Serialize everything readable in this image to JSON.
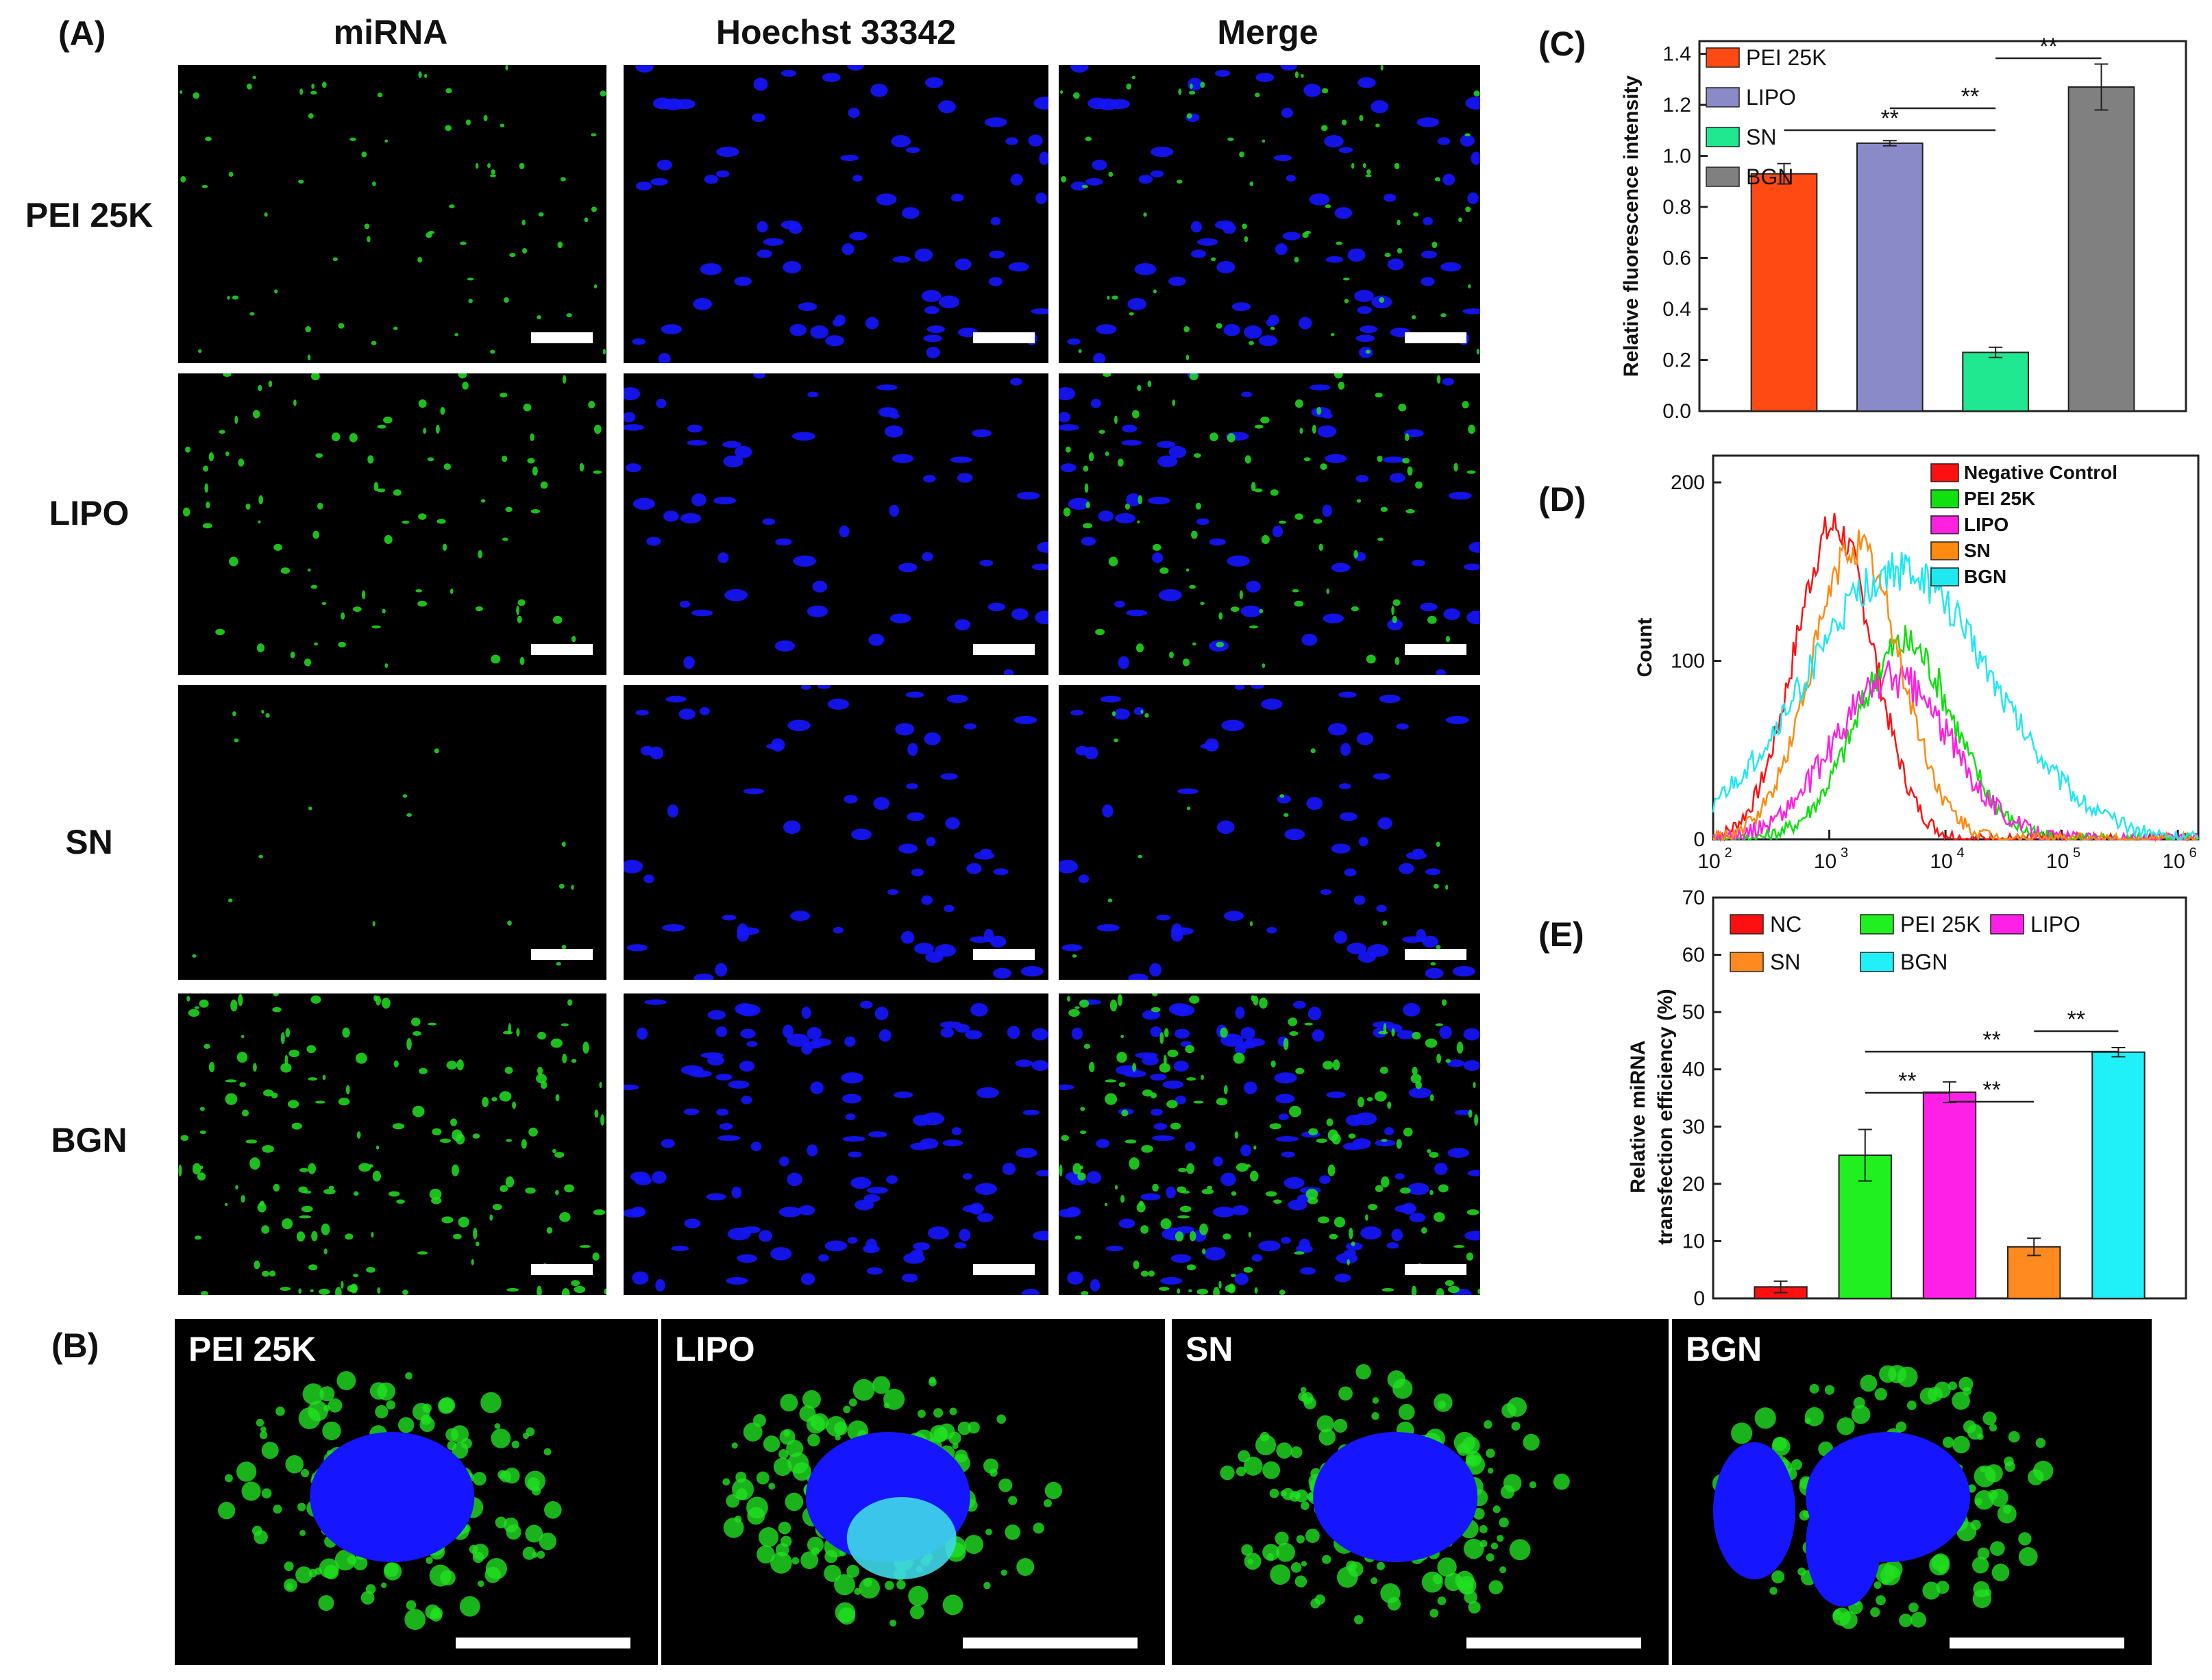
{
  "panelA": {
    "letter": "(A)",
    "columns": [
      "miRNA",
      "Hoechst 33342",
      "Merge"
    ],
    "rows": [
      "PEI 25K",
      "LIPO",
      "SN",
      "BGN"
    ]
  },
  "panelB": {
    "letter": "(B)",
    "labels": [
      "PEI 25K",
      "LIPO",
      "SN",
      "BGN"
    ]
  },
  "panelC": {
    "letter": "(C)"
  },
  "panelD": {
    "letter": "(D)"
  },
  "panelE": {
    "letter": "(E)"
  },
  "colors": {
    "miRNA": "#22e022",
    "nucleus": "#1515ff",
    "merge_overlap": "#3fd8e8"
  },
  "chart_data": [
    {
      "id": "C",
      "type": "bar",
      "categories": [
        "PEI 25K",
        "LIPO",
        "SN",
        "BGN"
      ],
      "values": [
        0.93,
        1.05,
        0.23,
        1.27
      ],
      "errors": [
        0.04,
        0.01,
        0.02,
        0.09
      ],
      "colors": [
        "#ff4a14",
        "#8a8ac8",
        "#20e890",
        "#808080"
      ],
      "legend": [
        "PEI 25K",
        "LIPO",
        "SN",
        "BGN"
      ],
      "ylabel": "Relative fluorescence intensity",
      "ylim": [
        0,
        1.45
      ],
      "yticks": [
        "0.0",
        "0.2",
        "0.4",
        "0.6",
        "0.8",
        "1.0",
        "1.2",
        "1.4"
      ],
      "significance": [
        {
          "from": "PEI 25K",
          "to": "SN",
          "label": "**"
        },
        {
          "from": "LIPO",
          "to": "SN",
          "label": "**"
        },
        {
          "from": "SN",
          "to": "BGN",
          "label": "**"
        }
      ]
    },
    {
      "id": "D",
      "type": "line",
      "xscale": "log",
      "xlim": [
        100,
        1500000
      ],
      "ylim": [
        0,
        215
      ],
      "ylabel": "Count",
      "yticks": [
        "0",
        "100",
        "200"
      ],
      "xticks": [
        "10",
        "10",
        "10",
        "10",
        "10"
      ],
      "xtick_exponents": [
        "2",
        "3",
        "4",
        "5",
        "6"
      ],
      "series": [
        {
          "name": "Negative Control",
          "color": "#ff1010",
          "peak": 1100,
          "width": 0.34,
          "height": 175
        },
        {
          "name": "PEI 25K",
          "color": "#10e010",
          "peak": 4500,
          "width": 0.42,
          "height": 110
        },
        {
          "name": "LIPO",
          "color": "#ff20e0",
          "peak": 3500,
          "width": 0.5,
          "height": 90
        },
        {
          "name": "SN",
          "color": "#ff8a10",
          "peak": 1700,
          "width": 0.38,
          "height": 165
        },
        {
          "name": "BGN",
          "color": "#20e8f0",
          "peak": 4000,
          "width": 0.8,
          "height": 150
        }
      ]
    },
    {
      "id": "E",
      "type": "bar",
      "categories": [
        "NC",
        "PEI 25K",
        "LIPO",
        "SN",
        "BGN"
      ],
      "values": [
        2,
        25,
        36,
        9,
        43
      ],
      "errors": [
        1,
        4.5,
        1.8,
        1.5,
        0.8
      ],
      "colors": [
        "#ff1010",
        "#20f020",
        "#ff20e8",
        "#ff8a20",
        "#20f0f8"
      ],
      "legend": [
        "NC",
        "PEI 25K",
        "LIPO",
        "SN",
        "BGN"
      ],
      "ylabel_line1": "Relative miRNA",
      "ylabel_line2": "transfection efficiency (%)",
      "ylim": [
        0,
        70
      ],
      "yticks": [
        "0",
        "10",
        "20",
        "30",
        "40",
        "50",
        "60",
        "70"
      ],
      "significance": [
        {
          "from": "PEI 25K",
          "to": "LIPO",
          "label": "**"
        },
        {
          "from": "LIPO",
          "to": "SN",
          "label": "**"
        },
        {
          "from": "PEI 25K",
          "to": "BGN",
          "label": "**"
        },
        {
          "from": "SN",
          "to": "BGN",
          "label": "**"
        }
      ]
    }
  ]
}
